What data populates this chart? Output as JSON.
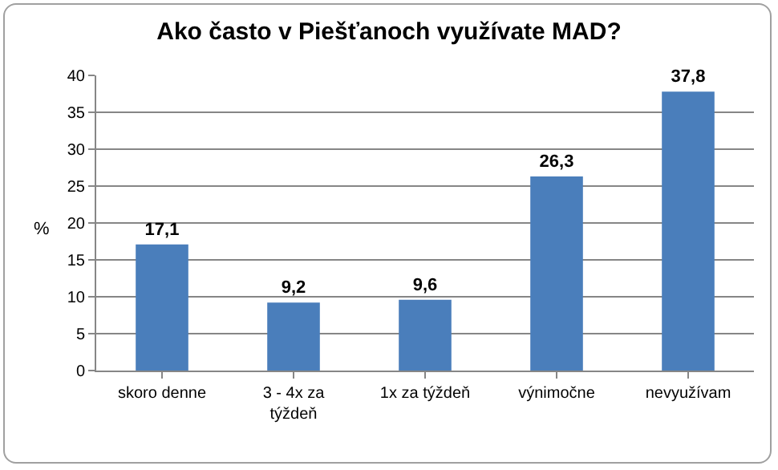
{
  "chart_data": {
    "type": "bar",
    "title": "Ako často v Piešťanoch využívate MAD?",
    "ylabel": "%",
    "categories": [
      "skoro denne",
      "3 - 4x za týždeň",
      "1x za týždeň",
      "výnimočne",
      "nevyužívam"
    ],
    "values": [
      17.1,
      9.2,
      9.6,
      26.3,
      37.8
    ],
    "color": "#4a7ebb",
    "value_labels": [
      "17,1",
      "9,2",
      "9,6",
      "26,3",
      "37,8"
    ],
    "ylim": [
      0,
      40
    ],
    "yticks": [
      0,
      5,
      10,
      15,
      20,
      25,
      30,
      35,
      40
    ],
    "grid": "y"
  }
}
